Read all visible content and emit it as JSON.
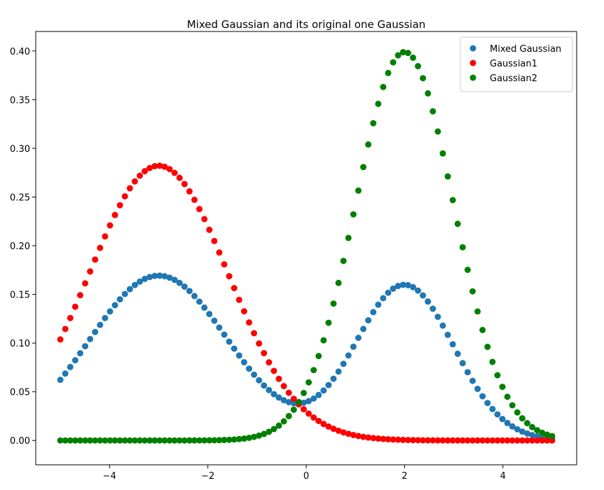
{
  "chart_data": {
    "type": "scatter",
    "title": "Mixed Gaussian and its original one Gaussian",
    "xlabel": "",
    "ylabel": "",
    "xlim": [
      -5.5,
      5.5
    ],
    "ylim": [
      -0.025,
      0.42
    ],
    "x_ticks": [
      -4,
      -2,
      0,
      2,
      4
    ],
    "x_tick_labels": [
      "−4",
      "−2",
      "0",
      "2",
      "4"
    ],
    "y_ticks": [
      0.0,
      0.05,
      0.1,
      0.15,
      0.2,
      0.25,
      0.3,
      0.35,
      0.4
    ],
    "y_tick_labels": [
      "0.00",
      "0.05",
      "0.10",
      "0.15",
      "0.20",
      "0.25",
      "0.30",
      "0.35",
      "0.40"
    ],
    "grid": false,
    "legend_position": "top-right",
    "x_range": {
      "start": -5,
      "end": 5,
      "count": 100
    },
    "series": [
      {
        "name": "Mixed Gaussian",
        "color": "#1f77b4",
        "components": [
          {
            "weight": 0.6,
            "mean": -3,
            "std": 1.414
          },
          {
            "weight": 0.4,
            "mean": 2,
            "std": 1.0
          }
        ]
      },
      {
        "name": "Gaussian1",
        "color": "#ff0000",
        "components": [
          {
            "weight": 1.0,
            "mean": -3,
            "std": 1.414
          }
        ]
      },
      {
        "name": "Gaussian2",
        "color": "#008000",
        "components": [
          {
            "weight": 1.0,
            "mean": 2,
            "std": 1.0
          }
        ]
      }
    ]
  }
}
